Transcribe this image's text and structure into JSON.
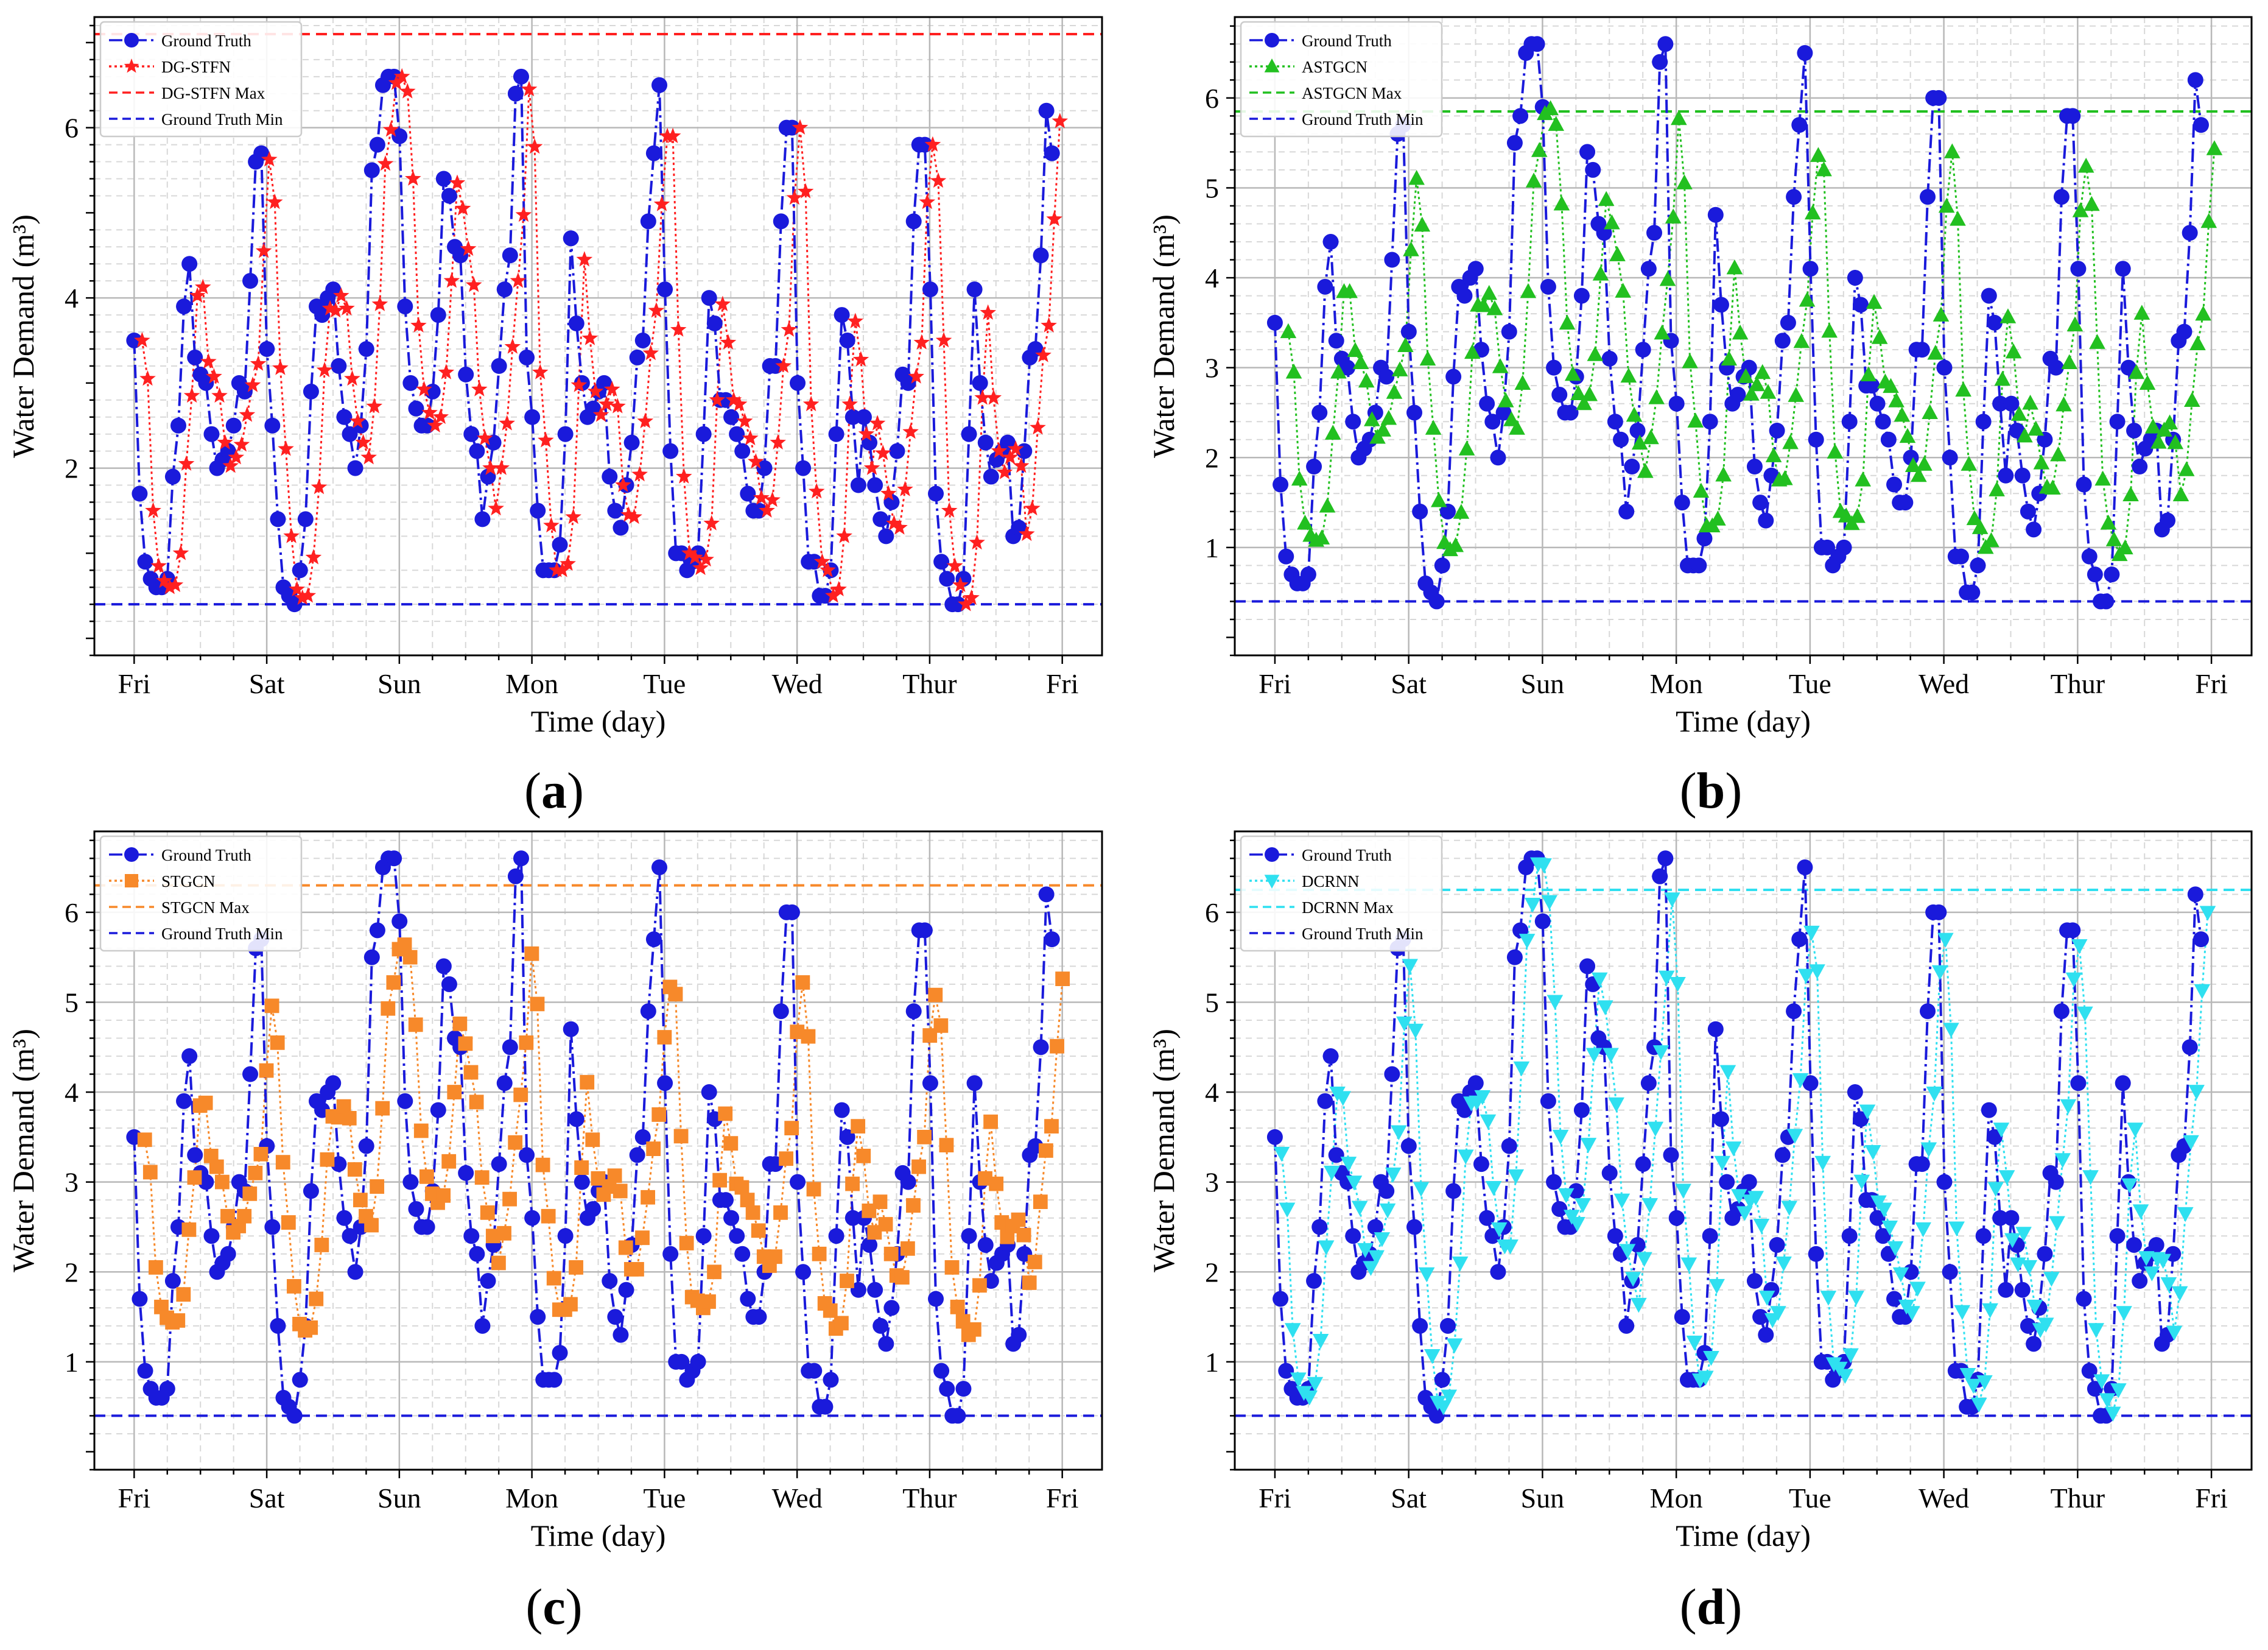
{
  "figure": {
    "panel_labels": [
      "a",
      "b",
      "c",
      "d"
    ]
  },
  "chart_data": [
    {
      "type": "line",
      "panel": "a",
      "xlabel": "Time (day)",
      "ylabel": "Water Demand (m³)",
      "xticks": [
        "Fri",
        "Sat",
        "Sun",
        "Mon",
        "Tue",
        "Wed",
        "Thur",
        "Fri"
      ],
      "yticks": [
        2,
        4,
        6
      ],
      "xlim": [
        -0.3,
        7.3
      ],
      "ylim": [
        -0.2,
        7.3
      ],
      "grid": true,
      "legend_position": "top-left",
      "legend": [
        "Ground Truth",
        "DG-STFN",
        "DG-STFN Max",
        "Ground Truth Min"
      ],
      "series": [
        {
          "name": "Ground Truth",
          "color": "#1a1adb",
          "marker": "circle",
          "style": "dashdot",
          "role": "truth"
        },
        {
          "name": "DG-STFN",
          "color": "#ff2020",
          "marker": "star",
          "style": "dotted",
          "role": "pred",
          "offset": 0.06,
          "variant": 1
        },
        {
          "name": "DG-STFN Max",
          "color": "#ff2020",
          "style": "dashed",
          "role": "hline",
          "y": 7.1
        },
        {
          "name": "Ground Truth Min",
          "color": "#1a1adb",
          "style": "dashed",
          "role": "hline",
          "y": 0.4
        }
      ]
    },
    {
      "type": "line",
      "panel": "b",
      "xlabel": "Time (day)",
      "ylabel": "Water Demand (m³)",
      "xticks": [
        "Fri",
        "Sat",
        "Sun",
        "Mon",
        "Tue",
        "Wed",
        "Thur",
        "Fri"
      ],
      "yticks": [
        1,
        2,
        3,
        4,
        5,
        6
      ],
      "xlim": [
        -0.3,
        7.3
      ],
      "ylim": [
        -0.2,
        6.9
      ],
      "grid": true,
      "legend_position": "top-left",
      "legend": [
        "Ground Truth",
        "ASTGCN",
        "ASTGCN Max",
        "Ground Truth Min"
      ],
      "series": [
        {
          "name": "Ground Truth",
          "color": "#1a1adb",
          "marker": "circle",
          "style": "dashdot",
          "role": "truth"
        },
        {
          "name": "ASTGCN",
          "color": "#22c020",
          "marker": "triangle-up",
          "style": "dotted",
          "role": "pred",
          "offset": 0.1,
          "variant": 2
        },
        {
          "name": "ASTGCN Max",
          "color": "#22c020",
          "style": "dashed",
          "role": "hline",
          "y": 5.85
        },
        {
          "name": "Ground Truth Min",
          "color": "#1a1adb",
          "style": "dashed",
          "role": "hline",
          "y": 0.4
        }
      ]
    },
    {
      "type": "line",
      "panel": "c",
      "xlabel": "Time (day)",
      "ylabel": "Water Demand (m³)",
      "xticks": [
        "Fri",
        "Sat",
        "Sun",
        "Mon",
        "Tue",
        "Wed",
        "Thur",
        "Fri"
      ],
      "yticks": [
        1,
        2,
        3,
        4,
        5,
        6
      ],
      "xlim": [
        -0.3,
        7.3
      ],
      "ylim": [
        -0.2,
        6.9
      ],
      "grid": true,
      "legend_position": "top-left",
      "legend": [
        "Ground Truth",
        "STGCN",
        "STGCN Max",
        "Ground Truth Min"
      ],
      "series": [
        {
          "name": "Ground Truth",
          "color": "#1a1adb",
          "marker": "circle",
          "style": "dashdot",
          "role": "truth"
        },
        {
          "name": "STGCN",
          "color": "#f7892a",
          "marker": "square",
          "style": "dotted",
          "role": "pred",
          "offset": 0.08,
          "variant": 3
        },
        {
          "name": "STGCN Max",
          "color": "#f7892a",
          "style": "dashed",
          "role": "hline",
          "y": 6.3
        },
        {
          "name": "Ground Truth Min",
          "color": "#1a1adb",
          "style": "dashed",
          "role": "hline",
          "y": 0.4
        }
      ]
    },
    {
      "type": "line",
      "panel": "d",
      "xlabel": "Time (day)",
      "ylabel": "Water Demand (m³)",
      "xticks": [
        "Fri",
        "Sat",
        "Sun",
        "Mon",
        "Tue",
        "Wed",
        "Thur",
        "Fri"
      ],
      "yticks": [
        1,
        2,
        3,
        4,
        5,
        6
      ],
      "xlim": [
        -0.3,
        7.3
      ],
      "ylim": [
        -0.2,
        6.9
      ],
      "grid": true,
      "legend_position": "top-left",
      "legend": [
        "Ground Truth",
        "DCRNN",
        "DCRNN Max",
        "Ground Truth Min"
      ],
      "series": [
        {
          "name": "Ground Truth",
          "color": "#1a1adb",
          "marker": "circle",
          "style": "dashdot",
          "role": "truth"
        },
        {
          "name": "DCRNN",
          "color": "#2fe0f0",
          "marker": "triangle-down",
          "style": "dotted",
          "role": "pred",
          "offset": 0.05,
          "variant": 4
        },
        {
          "name": "DCRNN Max",
          "color": "#2fe0f0",
          "style": "dashed",
          "role": "hline",
          "y": 6.25
        },
        {
          "name": "Ground Truth Min",
          "color": "#1a1adb",
          "style": "dashed",
          "role": "hline",
          "y": 0.4
        }
      ]
    }
  ],
  "ground_truth": {
    "x_step_days": 0.0417,
    "values": [
      3.5,
      1.7,
      0.9,
      0.7,
      0.6,
      0.6,
      0.7,
      1.9,
      2.5,
      3.9,
      4.4,
      3.3,
      3.1,
      3.0,
      2.4,
      2.0,
      2.1,
      2.2,
      2.5,
      3.0,
      2.9,
      4.2,
      5.6,
      5.7,
      3.4,
      2.5,
      1.4,
      0.6,
      0.5,
      0.4,
      0.8,
      1.4,
      2.9,
      3.9,
      3.8,
      4.0,
      4.1,
      3.2,
      2.6,
      2.4,
      2.0,
      2.5,
      3.4,
      5.5,
      5.8,
      6.5,
      6.6,
      6.6,
      5.9,
      3.9,
      3.0,
      2.7,
      2.5,
      2.5,
      2.9,
      3.8,
      5.4,
      5.2,
      4.6,
      4.5,
      3.1,
      2.4,
      2.2,
      1.4,
      1.9,
      2.3,
      3.2,
      4.1,
      4.5,
      6.4,
      6.6,
      3.3,
      2.6,
      1.5,
      0.8,
      0.8,
      0.8,
      1.1,
      2.4,
      4.7,
      3.7,
      3.0,
      2.6,
      2.7,
      2.9,
      3.0,
      1.9,
      1.5,
      1.3,
      1.8,
      2.3,
      3.3,
      3.5,
      4.9,
      5.7,
      6.5,
      4.1,
      2.2,
      1.0,
      1.0,
      0.8,
      0.9,
      1.0,
      2.4,
      4.0,
      3.7,
      2.8,
      2.8,
      2.6,
      2.4,
      2.2,
      1.7,
      1.5,
      1.5,
      2.0,
      3.2,
      3.2,
      4.9,
      6.0,
      6.0,
      3.0,
      2.0,
      0.9,
      0.9,
      0.5,
      0.5,
      0.8,
      2.4,
      3.8,
      3.5,
      2.6,
      1.8,
      2.6,
      2.3,
      1.8,
      1.4,
      1.2,
      1.6,
      2.2,
      3.1,
      3.0,
      4.9,
      5.8,
      5.8,
      4.1,
      1.7,
      0.9,
      0.7,
      0.4,
      0.4,
      0.7,
      2.4,
      4.1,
      3.0,
      2.3,
      1.9,
      2.1,
      2.2,
      2.3,
      1.2,
      1.3,
      2.2,
      3.3,
      3.4,
      4.5,
      6.2,
      5.7
    ]
  }
}
